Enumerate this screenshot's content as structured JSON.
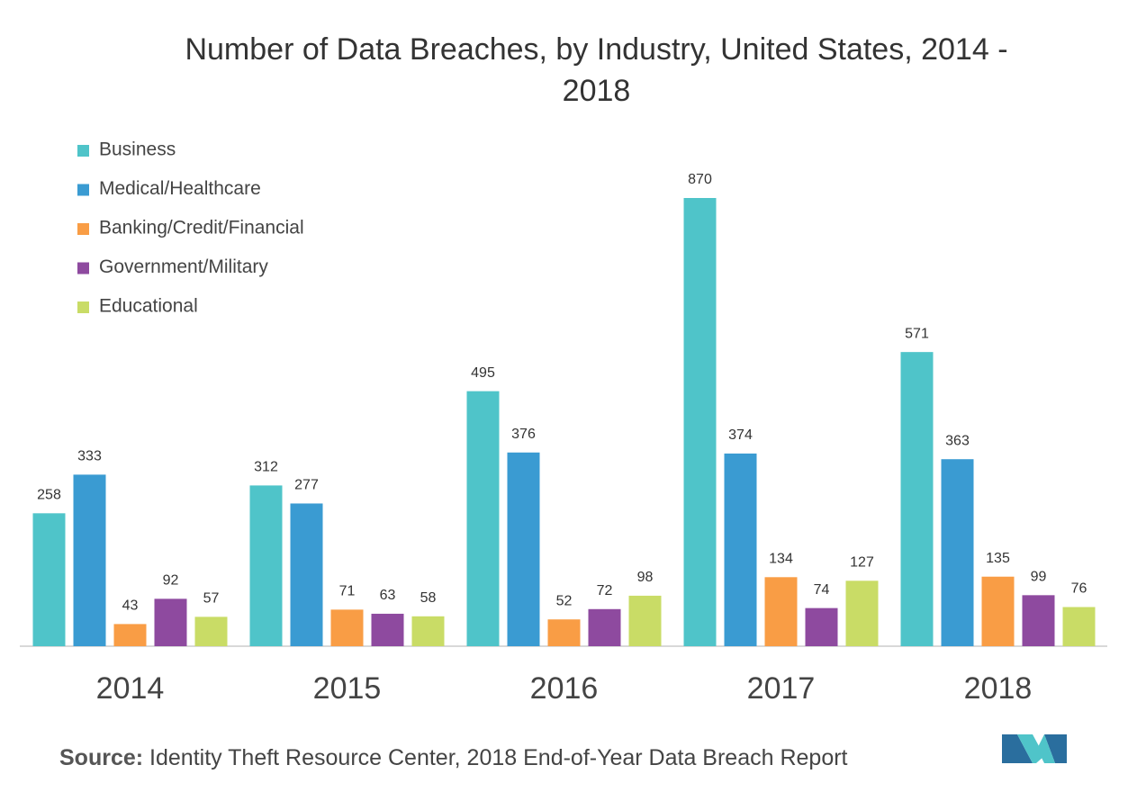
{
  "chart_data": {
    "type": "bar",
    "title": "Number of Data Breaches, by Industry, United States, 2014 - 2018",
    "categories": [
      "2014",
      "2015",
      "2016",
      "2017",
      "2018"
    ],
    "series": [
      {
        "name": "Business",
        "color": "#4fc4c9",
        "values": [
          258,
          312,
          495,
          870,
          571
        ]
      },
      {
        "name": "Medical/Healthcare",
        "color": "#3a9bd2",
        "values": [
          333,
          277,
          376,
          374,
          363
        ]
      },
      {
        "name": "Banking/Credit/Financial",
        "color": "#f99d45",
        "values": [
          43,
          71,
          52,
          134,
          135
        ]
      },
      {
        "name": "Government/Military",
        "color": "#8e4a9f",
        "values": [
          92,
          63,
          72,
          74,
          99
        ]
      },
      {
        "name": "Educational",
        "color": "#c9dc66",
        "values": [
          57,
          58,
          98,
          127,
          76
        ]
      }
    ],
    "legend": "top-left",
    "source_label": "Source:",
    "source_text": "Identity Theft Resource Center, 2018 End-of-Year Data Breach Report"
  }
}
